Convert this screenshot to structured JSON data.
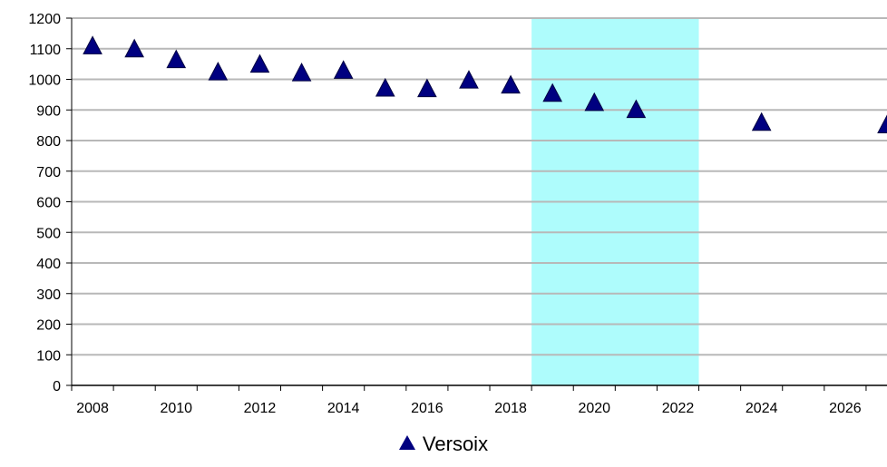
{
  "chart_data": {
    "type": "scatter",
    "title": "",
    "xlabel": "",
    "ylabel": "",
    "xlim": [
      2007.5,
      2027.0
    ],
    "ylim": [
      0,
      1200
    ],
    "x_ticks": [
      2008,
      2010,
      2012,
      2014,
      2016,
      2018,
      2020,
      2022,
      2024,
      2026
    ],
    "y_ticks": [
      0,
      100,
      200,
      300,
      400,
      500,
      600,
      700,
      800,
      900,
      1000,
      1100,
      1200
    ],
    "grid": "horizontal",
    "legend_position": "bottom-center",
    "highlight_band": {
      "x_range": [
        2018.5,
        2022.5
      ],
      "color": "#aefcfc"
    },
    "series": [
      {
        "name": "Versoix",
        "marker": "triangle",
        "color": "#000080",
        "points": [
          {
            "x": 2008,
            "y": 1110
          },
          {
            "x": 2009,
            "y": 1100
          },
          {
            "x": 2010,
            "y": 1065
          },
          {
            "x": 2011,
            "y": 1025
          },
          {
            "x": 2012,
            "y": 1050
          },
          {
            "x": 2013,
            "y": 1022
          },
          {
            "x": 2014,
            "y": 1030
          },
          {
            "x": 2015,
            "y": 972
          },
          {
            "x": 2016,
            "y": 970
          },
          {
            "x": 2017,
            "y": 998
          },
          {
            "x": 2018,
            "y": 982
          },
          {
            "x": 2019,
            "y": 955
          },
          {
            "x": 2020,
            "y": 925
          },
          {
            "x": 2021,
            "y": 902
          },
          {
            "x": 2024,
            "y": 860
          },
          {
            "x": 2027,
            "y": 852
          }
        ]
      }
    ]
  }
}
